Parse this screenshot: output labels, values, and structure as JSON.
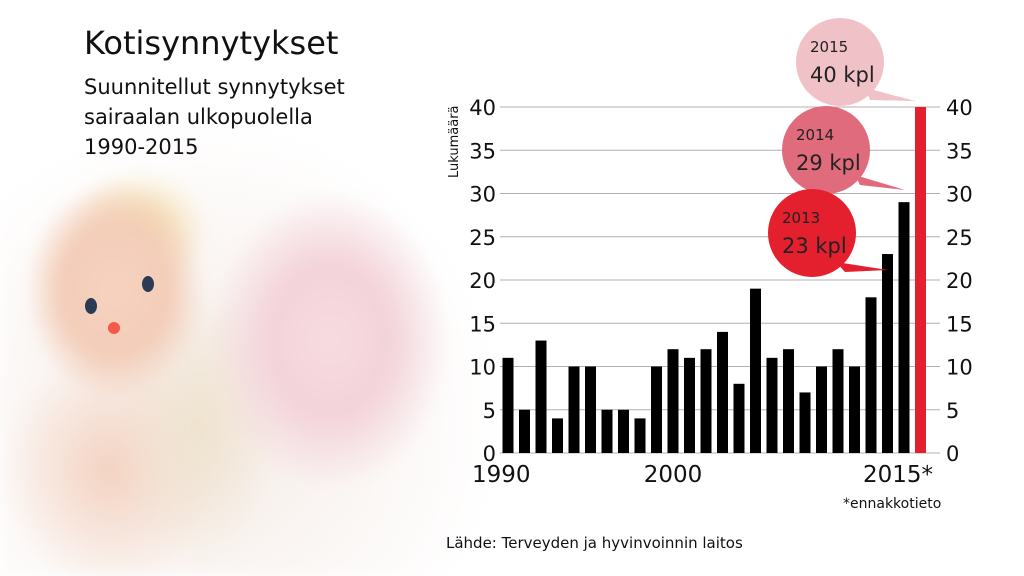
{
  "title": "Kotisynnytykset",
  "subtitle": "Suunnitellut synnytykset\nsairaalan ulkopuolella\n1990-2015",
  "source": "Lähde: Terveyden ja hyvinvoinnin laitos",
  "footnote": "*ennakkotieto",
  "chart_data": {
    "type": "bar",
    "ylabel": "Lukumäärä",
    "ylim": [
      0,
      40
    ],
    "yticks": [
      0,
      5,
      10,
      15,
      20,
      25,
      30,
      35,
      40
    ],
    "xtick_labels": [
      "1990",
      "2000",
      "2015*"
    ],
    "grid": true,
    "categories": [
      "1990",
      "1991",
      "1992",
      "1993",
      "1994",
      "1995",
      "1996",
      "1997",
      "1998",
      "1999",
      "2000",
      "2001",
      "2002",
      "2003",
      "2004",
      "2005",
      "2006",
      "2007",
      "2008",
      "2009",
      "2010",
      "2011",
      "2012",
      "2013",
      "2014",
      "2015"
    ],
    "values": [
      11,
      5,
      13,
      4,
      10,
      10,
      5,
      5,
      4,
      10,
      12,
      11,
      12,
      14,
      8,
      19,
      11,
      12,
      7,
      10,
      12,
      10,
      18,
      23,
      29,
      40
    ],
    "bar_color": "#000000",
    "highlight_color": "#e5202e",
    "annotations": [
      {
        "year": "2015",
        "text": "40 kpl",
        "color": "#f0c2c8"
      },
      {
        "year": "2014",
        "text": "29 kpl",
        "color": "#e06b7c"
      },
      {
        "year": "2013",
        "text": "23 kpl",
        "color": "#e5202e"
      }
    ]
  }
}
